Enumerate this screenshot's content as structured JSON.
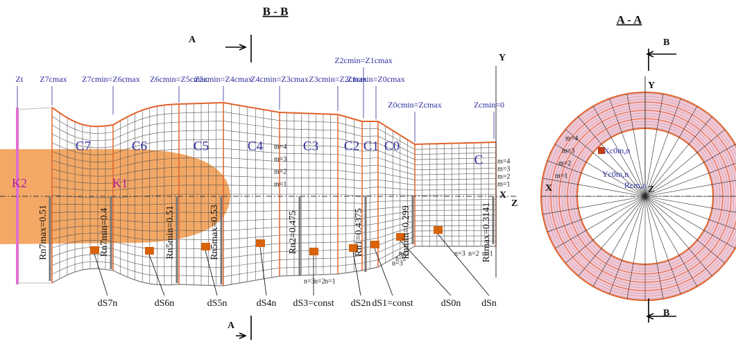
{
  "section_bb": {
    "title": "B - B",
    "cut_top": "A",
    "cut_bottom": "A"
  },
  "section_aa": {
    "title": "A - A",
    "cut_top": "B",
    "cut_bottom": "B"
  },
  "z_labels": [
    "Zt",
    "Z7cmax",
    "Z7cmin=Z6cmax",
    "Z6cmin=Z5cmax",
    "Z5cmin=Z4cmax",
    "Z4cmin=Z3cmax",
    "Z3cmin=Z2cmax",
    "Z2cmin=Z1cmax",
    "Z1cmin=Z0cmax",
    "Z0cmin=Zcmax",
    "Zcmin=0"
  ],
  "zones": [
    "C7",
    "C6",
    "C5",
    "C4",
    "C3",
    "C2",
    "C1",
    "C0",
    "C"
  ],
  "bodies": [
    "K2",
    "K1"
  ],
  "radii": [
    "Rn7max=0.51",
    "Rn7min=0.4",
    "Rn5min=0.51",
    "Rn5max=0.53",
    "Rn2=0.475",
    "Rn1=0.4375",
    "Rnmin=0.299",
    "Rnmax=0.3141"
  ],
  "elements": [
    "dS7n",
    "dS6n",
    "dS5n",
    "dS4n",
    "dS3=const",
    "dS2n",
    "dS1=const",
    "dS0n",
    "dSn"
  ],
  "left_axes": {
    "y": "Y",
    "x": "X",
    "z": "Z"
  },
  "m_labels_c4": [
    "m=4",
    "m=3",
    "m=2",
    "m=1"
  ],
  "m_labels_c": [
    "m=4",
    "m=3",
    "m=2",
    "m=1"
  ],
  "n_labels_c3": [
    "n=3",
    "n=2",
    "n=1"
  ],
  "n_labels_c0": [
    "n=3",
    "n=2",
    "n=1"
  ],
  "n_labels_c": [
    "n=3",
    "n=2",
    "n=1"
  ],
  "circle": {
    "axes": {
      "y": "Y",
      "x": "X",
      "z": "Z"
    },
    "m_labels": [
      "m=4",
      "m=3",
      "m=2",
      "m=1"
    ],
    "xc": "Xc0m,n",
    "yc": "Yc0m,n",
    "rc": "Rcm,n"
  }
}
